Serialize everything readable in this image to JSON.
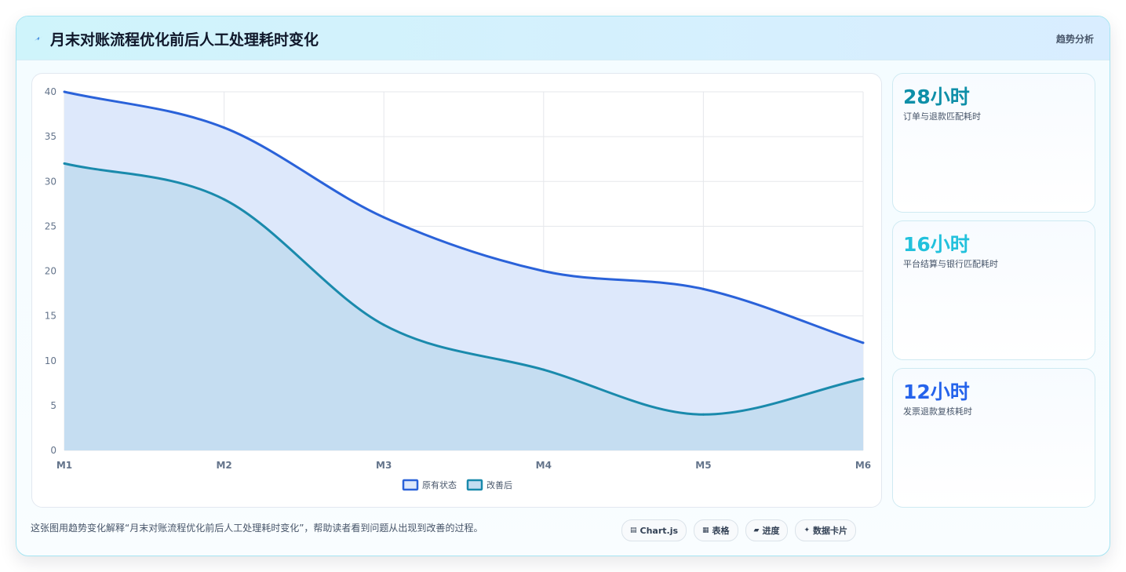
{
  "header": {
    "icon": "lightning-icon",
    "title": "月末对账流程优化前后人工处理耗时变化",
    "tag": "趋势分析"
  },
  "kpis": [
    {
      "value": "28小时",
      "label": "订单与退款匹配耗时",
      "color": "#0e8fa8"
    },
    {
      "value": "16小时",
      "label": "平台结算与银行匹配耗时",
      "color": "#22c1dc"
    },
    {
      "value": "12小时",
      "label": "发票退款复核耗时",
      "color": "#2563eb"
    }
  ],
  "footer": {
    "description": "这张图用趋势变化解释“月末对账流程优化前后人工处理耗时变化”，帮助读者看到问题从出现到改善的过程。",
    "chips": [
      {
        "icon": "chart-icon",
        "glyph": "▤",
        "label": "Chart.js"
      },
      {
        "icon": "table-icon",
        "glyph": "▦",
        "label": "表格"
      },
      {
        "icon": "progress-icon",
        "glyph": "▰",
        "label": "进度"
      },
      {
        "icon": "sparkle-icon",
        "glyph": "✦",
        "label": "数据卡片"
      }
    ]
  },
  "chart_data": {
    "type": "area",
    "categories": [
      "M1",
      "M2",
      "M3",
      "M4",
      "M5",
      "M6"
    ],
    "series": [
      {
        "name": "原有状态",
        "values": [
          40,
          36,
          26,
          20,
          18,
          12
        ],
        "color": "#2a62d9",
        "fill": "#dde8fb"
      },
      {
        "name": "改善后",
        "values": [
          32,
          28,
          14,
          9,
          4,
          8
        ],
        "color": "#1a8aac",
        "fill": "#c5ddf1"
      }
    ],
    "ylim": [
      0,
      40
    ],
    "yticks": [
      0,
      5,
      10,
      15,
      20,
      25,
      30,
      35,
      40
    ],
    "grid": true,
    "legend": "bottom-center",
    "smooth": true,
    "xlabel": "",
    "ylabel": "",
    "title": ""
  }
}
